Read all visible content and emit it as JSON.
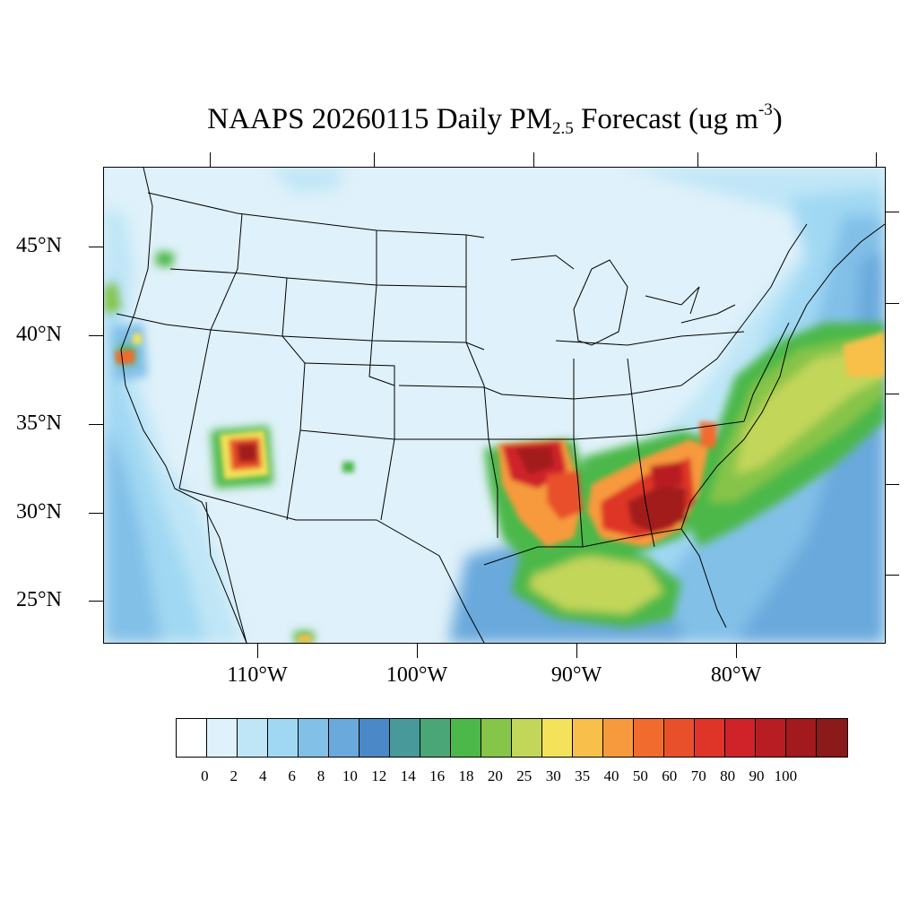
{
  "map": {
    "title_main": "NAAPS 20260115 Daily PM",
    "title_sub": "2.5",
    "title_rest": " Forecast (ug m",
    "title_sup": "-3",
    "title_end": ")",
    "lat_labels": [
      "45°N",
      "40°N",
      "35°N",
      "30°N",
      "25°N"
    ],
    "lon_labels": [
      "110°W",
      "100°W",
      "90°W",
      "80°W"
    ],
    "colorbar": {
      "colors": [
        "#ffffff",
        "#dff1fa",
        "#bfe6f7",
        "#a0d8f3",
        "#82c0e8",
        "#69a9dc",
        "#4a88c8",
        "#489a9a",
        "#4aa676",
        "#4cb84a",
        "#86c44a",
        "#c2d65a",
        "#f4e35a",
        "#f8c04a",
        "#f79a3e",
        "#f26b2e",
        "#e8502c",
        "#de3528",
        "#cf2329",
        "#b81d24",
        "#a31a1e",
        "#8b1a1a"
      ],
      "labels": [
        "0",
        "2",
        "4",
        "6",
        "8",
        "10",
        "12",
        "14",
        "16",
        "18",
        "20",
        "25",
        "30",
        "35",
        "40",
        "50",
        "60",
        "70",
        "80",
        "90",
        "100"
      ]
    }
  }
}
